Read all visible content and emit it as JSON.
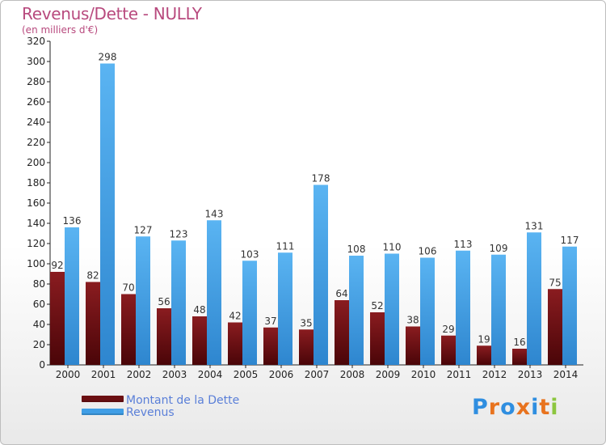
{
  "header": {
    "title": "Revenus/Dette - NULLY",
    "subtitle": "(en milliers d'€)"
  },
  "legend": {
    "items": [
      {
        "label": "Montant de la Dette",
        "color": "#6b0f12"
      },
      {
        "label": "Revenus",
        "color": "#3f9ee6"
      }
    ]
  },
  "brand": {
    "text": "Proxiti",
    "letter_colors": [
      "#2f8ee0",
      "#e8731e",
      "#2f8ee0",
      "#e8731e",
      "#2f8ee0",
      "#e8731e",
      "#8cc63f"
    ]
  },
  "chart_data": {
    "type": "bar",
    "title": "Revenus/Dette - NULLY",
    "subtitle": "(en milliers d'€)",
    "categories": [
      "2000",
      "2001",
      "2002",
      "2003",
      "2004",
      "2005",
      "2006",
      "2007",
      "2008",
      "2009",
      "2010",
      "2011",
      "2012",
      "2013",
      "2014"
    ],
    "series": [
      {
        "name": "Montant de la Dette",
        "color": "#6b0f12",
        "values": [
          92,
          82,
          70,
          56,
          48,
          42,
          37,
          35,
          64,
          52,
          38,
          29,
          19,
          16,
          75
        ]
      },
      {
        "name": "Revenus",
        "color": "#3f9ee6",
        "values": [
          136,
          298,
          127,
          123,
          143,
          103,
          111,
          178,
          108,
          110,
          106,
          113,
          109,
          131,
          117
        ]
      }
    ],
    "ylim": [
      0,
      320
    ],
    "yticks": [
      0,
      20,
      40,
      60,
      80,
      100,
      120,
      140,
      160,
      180,
      200,
      220,
      240,
      260,
      280,
      300,
      320
    ],
    "grid": false,
    "legend_position": "bottom-left"
  }
}
